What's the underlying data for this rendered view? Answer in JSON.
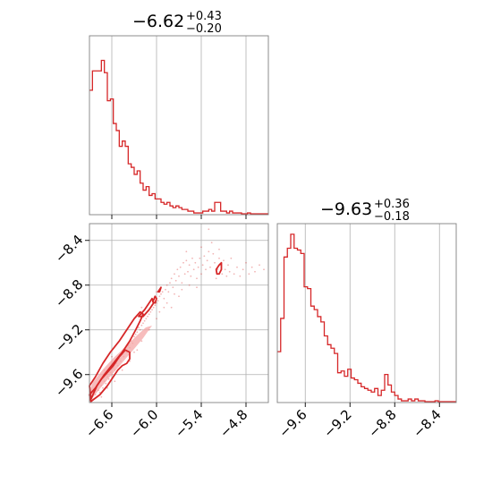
{
  "colors": {
    "accent": "#d62728",
    "grid": "#b0b0b0",
    "frame": "#808080",
    "fill": "#f4a6a6"
  },
  "chart_data": [
    {
      "type": "histogram",
      "panel": "top-left",
      "title": {
        "median": "−6.62",
        "plus": "+0.43",
        "minus": "−0.20"
      },
      "xlim": [
        -6.9,
        -4.5
      ],
      "xticks": [
        -6.6,
        -6.0,
        -5.4,
        -4.8
      ],
      "bins": [
        [
          -6.9,
          -6.86,
          0.71
        ],
        [
          -6.86,
          -6.82,
          0.82
        ],
        [
          -6.82,
          -6.78,
          0.82
        ],
        [
          -6.78,
          -6.74,
          0.82
        ],
        [
          -6.74,
          -6.7,
          0.88
        ],
        [
          -6.7,
          -6.66,
          0.81
        ],
        [
          -6.66,
          -6.62,
          0.65
        ],
        [
          -6.62,
          -6.58,
          0.66
        ],
        [
          -6.58,
          -6.54,
          0.52
        ],
        [
          -6.54,
          -6.5,
          0.48
        ],
        [
          -6.5,
          -6.46,
          0.39
        ],
        [
          -6.46,
          -6.42,
          0.42
        ],
        [
          -6.42,
          -6.38,
          0.39
        ],
        [
          -6.38,
          -6.34,
          0.29
        ],
        [
          -6.34,
          -6.3,
          0.27
        ],
        [
          -6.3,
          -6.26,
          0.23
        ],
        [
          -6.26,
          -6.22,
          0.25
        ],
        [
          -6.22,
          -6.18,
          0.18
        ],
        [
          -6.18,
          -6.14,
          0.14
        ],
        [
          -6.14,
          -6.1,
          0.16
        ],
        [
          -6.1,
          -6.06,
          0.11
        ],
        [
          -6.06,
          -6.02,
          0.12
        ],
        [
          -6.02,
          -5.98,
          0.09
        ],
        [
          -5.98,
          -5.94,
          0.09
        ],
        [
          -5.94,
          -5.9,
          0.07
        ],
        [
          -5.9,
          -5.86,
          0.06
        ],
        [
          -5.86,
          -5.82,
          0.07
        ],
        [
          -5.82,
          -5.78,
          0.05
        ],
        [
          -5.78,
          -5.74,
          0.04
        ],
        [
          -5.74,
          -5.7,
          0.05
        ],
        [
          -5.7,
          -5.66,
          0.04
        ],
        [
          -5.66,
          -5.62,
          0.03
        ],
        [
          -5.62,
          -5.58,
          0.03
        ],
        [
          -5.58,
          -5.54,
          0.02
        ],
        [
          -5.54,
          -5.5,
          0.02
        ],
        [
          -5.5,
          -5.46,
          0.01
        ],
        [
          -5.46,
          -5.42,
          0.01
        ],
        [
          -5.42,
          -5.38,
          0.01
        ],
        [
          -5.38,
          -5.34,
          0.02
        ],
        [
          -5.34,
          -5.3,
          0.02
        ],
        [
          -5.3,
          -5.26,
          0.03
        ],
        [
          -5.26,
          -5.22,
          0.02
        ],
        [
          -5.22,
          -5.18,
          0.07
        ],
        [
          -5.18,
          -5.14,
          0.07
        ],
        [
          -5.14,
          -5.1,
          0.02
        ],
        [
          -5.1,
          -5.06,
          0.02
        ],
        [
          -5.06,
          -5.02,
          0.01
        ],
        [
          -5.02,
          -4.98,
          0.02
        ],
        [
          -4.98,
          -4.94,
          0.01
        ],
        [
          -4.94,
          -4.9,
          0.01
        ],
        [
          -4.9,
          -4.86,
          0.01
        ],
        [
          -4.86,
          -4.82,
          0.005
        ],
        [
          -4.82,
          -4.78,
          0.005
        ],
        [
          -4.78,
          -4.74,
          0.01
        ],
        [
          -4.74,
          -4.7,
          0.005
        ],
        [
          -4.7,
          -4.66,
          0.005
        ],
        [
          -4.66,
          -4.62,
          0.005
        ],
        [
          -4.62,
          -4.58,
          0.005
        ],
        [
          -4.58,
          -4.54,
          0.005
        ],
        [
          -4.54,
          -4.5,
          0.005
        ]
      ]
    },
    {
      "type": "scatter",
      "panel": "bottom-left",
      "xlim": [
        -6.9,
        -4.5
      ],
      "ylim": [
        -9.85,
        -8.25
      ],
      "xticks": [
        -6.6,
        -6.0,
        -5.4,
        -4.8
      ],
      "yticks": [
        -8.4,
        -8.8,
        -9.2,
        -9.6
      ],
      "points": [
        [
          -6.85,
          -9.82
        ],
        [
          -6.82,
          -9.78
        ],
        [
          -6.8,
          -9.8
        ],
        [
          -6.78,
          -9.74
        ],
        [
          -6.76,
          -9.76
        ],
        [
          -6.74,
          -9.7
        ],
        [
          -6.72,
          -9.72
        ],
        [
          -6.7,
          -9.66
        ],
        [
          -6.68,
          -9.68
        ],
        [
          -6.66,
          -9.62
        ],
        [
          -6.64,
          -9.64
        ],
        [
          -6.62,
          -9.58
        ],
        [
          -6.6,
          -9.6
        ],
        [
          -6.58,
          -9.54
        ],
        [
          -6.56,
          -9.56
        ],
        [
          -6.54,
          -9.5
        ],
        [
          -6.52,
          -9.52
        ],
        [
          -6.5,
          -9.46
        ],
        [
          -6.48,
          -9.48
        ],
        [
          -6.46,
          -9.42
        ],
        [
          -6.44,
          -9.44
        ],
        [
          -6.42,
          -9.38
        ],
        [
          -6.4,
          -9.4
        ],
        [
          -6.38,
          -9.34
        ],
        [
          -6.36,
          -9.36
        ],
        [
          -6.34,
          -9.3
        ],
        [
          -6.32,
          -9.32
        ],
        [
          -6.3,
          -9.26
        ],
        [
          -6.28,
          -9.24
        ],
        [
          -6.26,
          -9.22
        ],
        [
          -6.24,
          -9.18
        ],
        [
          -6.22,
          -9.2
        ],
        [
          -6.2,
          -9.16
        ],
        [
          -6.18,
          -9.14
        ],
        [
          -6.16,
          -9.12
        ],
        [
          -6.14,
          -9.1
        ],
        [
          -6.12,
          -9.08
        ],
        [
          -6.1,
          -9.06
        ],
        [
          -6.08,
          -9.04
        ],
        [
          -6.06,
          -9.02
        ],
        [
          -6.04,
          -9.0
        ],
        [
          -6.02,
          -8.98
        ],
        [
          -6.0,
          -8.96
        ],
        [
          -5.98,
          -8.94
        ],
        [
          -5.96,
          -8.9
        ],
        [
          -5.94,
          -8.88
        ],
        [
          -5.92,
          -8.86
        ],
        [
          -5.9,
          -8.92
        ],
        [
          -5.88,
          -8.84
        ],
        [
          -5.86,
          -8.8
        ],
        [
          -5.84,
          -8.86
        ],
        [
          -5.82,
          -8.78
        ],
        [
          -5.8,
          -8.74
        ],
        [
          -5.78,
          -8.82
        ],
        [
          -5.76,
          -8.7
        ],
        [
          -5.74,
          -8.76
        ],
        [
          -5.72,
          -8.66
        ],
        [
          -5.7,
          -8.72
        ],
        [
          -5.68,
          -8.64
        ],
        [
          -5.66,
          -8.78
        ],
        [
          -5.64,
          -8.6
        ],
        [
          -5.62,
          -8.7
        ],
        [
          -5.6,
          -8.58
        ],
        [
          -5.58,
          -8.68
        ],
        [
          -5.56,
          -8.62
        ],
        [
          -5.54,
          -8.72
        ],
        [
          -5.52,
          -8.56
        ],
        [
          -5.5,
          -8.66
        ],
        [
          -5.48,
          -8.6
        ],
        [
          -5.46,
          -8.74
        ],
        [
          -5.44,
          -8.64
        ],
        [
          -5.42,
          -8.56
        ],
        [
          -5.4,
          -8.7
        ],
        [
          -5.38,
          -8.62
        ],
        [
          -5.36,
          -8.54
        ],
        [
          -5.34,
          -8.66
        ],
        [
          -5.32,
          -8.58
        ],
        [
          -5.3,
          -8.5
        ],
        [
          -5.28,
          -8.64
        ],
        [
          -5.26,
          -8.42
        ],
        [
          -5.24,
          -8.52
        ],
        [
          -5.22,
          -8.6
        ],
        [
          -5.2,
          -8.74
        ],
        [
          -5.18,
          -8.66
        ],
        [
          -5.16,
          -8.56
        ],
        [
          -5.14,
          -8.62
        ],
        [
          -5.12,
          -8.7
        ],
        [
          -5.1,
          -8.58
        ],
        [
          -5.08,
          -8.66
        ],
        [
          -5.06,
          -8.72
        ],
        [
          -5.04,
          -8.62
        ],
        [
          -5.02,
          -8.68
        ],
        [
          -5.0,
          -8.56
        ],
        [
          -4.96,
          -8.7
        ],
        [
          -4.92,
          -8.64
        ],
        [
          -4.88,
          -8.72
        ],
        [
          -4.84,
          -8.66
        ],
        [
          -4.8,
          -8.6
        ],
        [
          -4.76,
          -8.7
        ],
        [
          -4.72,
          -8.64
        ],
        [
          -4.68,
          -8.68
        ],
        [
          -4.62,
          -8.62
        ],
        [
          -4.56,
          -8.66
        ],
        [
          -6.3,
          -9.4
        ],
        [
          -6.2,
          -9.3
        ],
        [
          -6.1,
          -9.2
        ],
        [
          -6.0,
          -9.1
        ],
        [
          -5.9,
          -9.0
        ],
        [
          -6.4,
          -9.2
        ],
        [
          -6.2,
          -9.0
        ],
        [
          -6.0,
          -8.86
        ],
        [
          -5.8,
          -9.0
        ],
        [
          -5.7,
          -8.9
        ],
        [
          -6.5,
          -9.3
        ],
        [
          -5.3,
          -8.3
        ],
        [
          -5.16,
          -8.48
        ],
        [
          -5.4,
          -8.46
        ],
        [
          -5.6,
          -8.5
        ],
        [
          -6.6,
          -9.44
        ],
        [
          -6.7,
          -9.56
        ],
        [
          -6.74,
          -9.8
        ],
        [
          -6.66,
          -9.72
        ],
        [
          -6.56,
          -9.66
        ],
        [
          -6.46,
          -9.56
        ],
        [
          -6.36,
          -9.48
        ],
        [
          -6.26,
          -9.38
        ],
        [
          -5.96,
          -9.04
        ],
        [
          -5.86,
          -8.96
        ],
        [
          -5.76,
          -8.88
        ],
        [
          -5.66,
          -8.84
        ],
        [
          -5.56,
          -8.8
        ],
        [
          -5.46,
          -8.82
        ]
      ],
      "contours": [
        [
          [
            -6.88,
            -9.82
          ],
          [
            -6.8,
            -9.7
          ],
          [
            -6.7,
            -9.6
          ],
          [
            -6.58,
            -9.5
          ],
          [
            -6.46,
            -9.4
          ],
          [
            -6.36,
            -9.3
          ],
          [
            -6.28,
            -9.2
          ],
          [
            -6.22,
            -9.12
          ],
          [
            -6.18,
            -9.06
          ],
          [
            -6.22,
            -9.04
          ],
          [
            -6.3,
            -9.1
          ],
          [
            -6.4,
            -9.2
          ],
          [
            -6.5,
            -9.3
          ],
          [
            -6.62,
            -9.4
          ],
          [
            -6.72,
            -9.5
          ],
          [
            -6.82,
            -9.62
          ],
          [
            -6.9,
            -9.7
          ]
        ],
        [
          [
            -6.88,
            -9.84
          ],
          [
            -6.76,
            -9.78
          ],
          [
            -6.66,
            -9.7
          ],
          [
            -6.58,
            -9.62
          ],
          [
            -6.52,
            -9.56
          ],
          [
            -6.46,
            -9.52
          ],
          [
            -6.4,
            -9.5
          ],
          [
            -6.36,
            -9.46
          ],
          [
            -6.36,
            -9.4
          ],
          [
            -6.42,
            -9.38
          ],
          [
            -6.5,
            -9.44
          ],
          [
            -6.58,
            -9.52
          ],
          [
            -6.66,
            -9.58
          ],
          [
            -6.74,
            -9.64
          ],
          [
            -6.82,
            -9.72
          ],
          [
            -6.9,
            -9.78
          ]
        ],
        [
          [
            -6.24,
            -9.08
          ],
          [
            -6.16,
            -9.02
          ],
          [
            -6.1,
            -8.96
          ],
          [
            -6.06,
            -8.92
          ],
          [
            -6.04,
            -8.96
          ],
          [
            -6.1,
            -9.02
          ],
          [
            -6.18,
            -9.08
          ]
        ],
        [
          [
            -5.98,
            -8.86
          ],
          [
            -5.96,
            -8.84
          ],
          [
            -5.94,
            -8.82
          ],
          [
            -5.96,
            -8.86
          ]
        ],
        [
          [
            -5.2,
            -8.66
          ],
          [
            -5.16,
            -8.62
          ],
          [
            -5.13,
            -8.6
          ],
          [
            -5.13,
            -8.66
          ],
          [
            -5.16,
            -8.7
          ],
          [
            -5.19,
            -8.7
          ]
        ],
        [
          [
            -6.05,
            -8.95
          ],
          [
            -6.02,
            -8.9
          ],
          [
            -6.0,
            -8.92
          ],
          [
            -6.02,
            -8.96
          ]
        ]
      ]
    },
    {
      "type": "histogram",
      "panel": "bottom-right",
      "title": {
        "median": "−9.63",
        "plus": "+0.36",
        "minus": "−0.18"
      },
      "xlim": [
        -9.85,
        -8.25
      ],
      "xticks": [
        -9.6,
        -9.2,
        -8.8,
        -8.4
      ],
      "bins": [
        [
          -9.85,
          -9.82,
          0.29
        ],
        [
          -9.82,
          -9.79,
          0.48
        ],
        [
          -9.79,
          -9.76,
          0.83
        ],
        [
          -9.76,
          -9.73,
          0.88
        ],
        [
          -9.73,
          -9.7,
          0.96
        ],
        [
          -9.7,
          -9.67,
          0.88
        ],
        [
          -9.67,
          -9.64,
          0.87
        ],
        [
          -9.64,
          -9.61,
          0.85
        ],
        [
          -9.61,
          -9.58,
          0.66
        ],
        [
          -9.58,
          -9.55,
          0.65
        ],
        [
          -9.55,
          -9.52,
          0.55
        ],
        [
          -9.52,
          -9.49,
          0.53
        ],
        [
          -9.49,
          -9.46,
          0.49
        ],
        [
          -9.46,
          -9.43,
          0.46
        ],
        [
          -9.43,
          -9.4,
          0.38
        ],
        [
          -9.4,
          -9.37,
          0.33
        ],
        [
          -9.37,
          -9.34,
          0.31
        ],
        [
          -9.34,
          -9.31,
          0.28
        ],
        [
          -9.31,
          -9.28,
          0.17
        ],
        [
          -9.28,
          -9.25,
          0.18
        ],
        [
          -9.25,
          -9.22,
          0.15
        ],
        [
          -9.22,
          -9.19,
          0.19
        ],
        [
          -9.19,
          -9.16,
          0.14
        ],
        [
          -9.16,
          -9.13,
          0.13
        ],
        [
          -9.13,
          -9.1,
          0.11
        ],
        [
          -9.1,
          -9.07,
          0.09
        ],
        [
          -9.07,
          -9.04,
          0.08
        ],
        [
          -9.04,
          -9.01,
          0.07
        ],
        [
          -9.01,
          -8.98,
          0.06
        ],
        [
          -8.98,
          -8.95,
          0.08
        ],
        [
          -8.95,
          -8.92,
          0.04
        ],
        [
          -8.92,
          -8.89,
          0.07
        ],
        [
          -8.89,
          -8.86,
          0.16
        ],
        [
          -8.86,
          -8.83,
          0.1
        ],
        [
          -8.83,
          -8.8,
          0.06
        ],
        [
          -8.8,
          -8.77,
          0.04
        ],
        [
          -8.77,
          -8.74,
          0.02
        ],
        [
          -8.74,
          -8.71,
          0.01
        ],
        [
          -8.71,
          -8.68,
          0.01
        ],
        [
          -8.68,
          -8.65,
          0.02
        ],
        [
          -8.65,
          -8.62,
          0.01
        ],
        [
          -8.62,
          -8.59,
          0.02
        ],
        [
          -8.59,
          -8.56,
          0.01
        ],
        [
          -8.56,
          -8.53,
          0.01
        ],
        [
          -8.53,
          -8.5,
          0.005
        ],
        [
          -8.5,
          -8.47,
          0.005
        ],
        [
          -8.47,
          -8.44,
          0.005
        ],
        [
          -8.44,
          -8.41,
          0.01
        ],
        [
          -8.41,
          -8.38,
          0.005
        ],
        [
          -8.38,
          -8.35,
          0.005
        ],
        [
          -8.35,
          -8.32,
          0.005
        ],
        [
          -8.32,
          -8.29,
          0.005
        ],
        [
          -8.29,
          -8.25,
          0.005
        ]
      ]
    }
  ]
}
